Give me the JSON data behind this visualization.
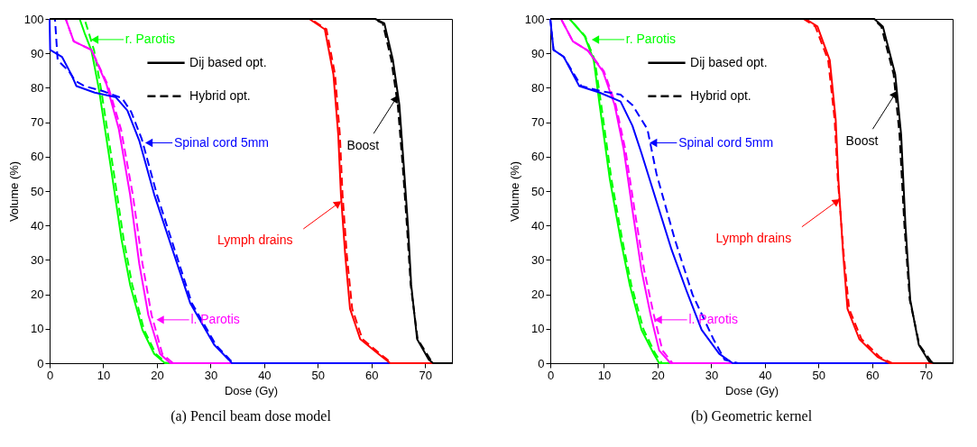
{
  "chart_data": [
    {
      "type": "line",
      "title": "(a)  Pencil beam dose model",
      "xlabel": "Dose (Gy)",
      "ylabel": "Volume (%)",
      "xlim": [
        0,
        75
      ],
      "ylim": [
        0,
        100
      ],
      "xticks": [
        0,
        10,
        20,
        30,
        40,
        50,
        60,
        70
      ],
      "yticks": [
        0,
        10,
        20,
        30,
        40,
        50,
        60,
        70,
        80,
        90,
        100
      ],
      "series": [
        {
          "color": "#00ff00",
          "line_style": "solid",
          "x": [
            0,
            5.6,
            6.5,
            7.8,
            9.2,
            11.5,
            13.4,
            15,
            17.3,
            19.5,
            21.5,
            75
          ],
          "values": [
            100,
            100,
            96,
            90.8,
            79.5,
            56,
            36,
            22.8,
            9.7,
            2.7,
            0,
            0
          ]
        },
        {
          "color": "#00ff00",
          "line_style": "dashed",
          "x": [
            0,
            6.5,
            7.3,
            8.3,
            9.6,
            11.9,
            13.8,
            15.4,
            17.6,
            19.8,
            21.8,
            75
          ],
          "values": [
            100,
            100,
            96,
            90.8,
            79.5,
            56,
            36,
            22.8,
            9.7,
            2.7,
            0,
            0
          ]
        },
        {
          "color": "#ff00ff",
          "line_style": "solid",
          "x": [
            0,
            3,
            4.5,
            7.8,
            10.6,
            12.9,
            15,
            16.7,
            18.4,
            20.6,
            22.5,
            75
          ],
          "values": [
            100,
            100,
            93.5,
            91,
            81,
            68,
            49,
            29,
            14,
            2.7,
            0,
            0
          ]
        },
        {
          "color": "#ff00ff",
          "line_style": "dashed",
          "x": [
            0,
            3,
            4.5,
            7.8,
            10.8,
            13.3,
            15.5,
            17.3,
            19,
            21,
            23,
            75
          ],
          "values": [
            100,
            100,
            93.5,
            91,
            81,
            68,
            49,
            29,
            14,
            2.7,
            0,
            0
          ]
        },
        {
          "color": "#0000ff",
          "line_style": "solid",
          "x": [
            0,
            0.1,
            2.3,
            4,
            5,
            8.4,
            12.3,
            14.5,
            16.7,
            19.5,
            22.9,
            26.2,
            30.7,
            33.4,
            34,
            75
          ],
          "values": [
            100,
            91,
            89,
            84,
            80.5,
            78.6,
            77.3,
            73.4,
            64.7,
            49,
            33,
            17.5,
            5.3,
            1,
            0,
            0
          ]
        },
        {
          "color": "#0000ff",
          "line_style": "dashed",
          "x": [
            0,
            1,
            1.5,
            3.5,
            4.8,
            6.5,
            10,
            13.5,
            15.2,
            17.2,
            20,
            23.3,
            26.5,
            31,
            33.6,
            34.3,
            75
          ],
          "values": [
            100,
            100,
            88,
            85,
            82,
            80.5,
            79,
            77,
            73,
            65,
            49,
            33,
            17.5,
            5.3,
            1,
            0,
            0
          ]
        },
        {
          "color": "#ff0000",
          "line_style": "solid",
          "x": [
            0,
            48.4,
            51.3,
            52.9,
            53.8,
            54.3,
            55.1,
            56,
            57.9,
            61.3,
            63.5,
            75
          ],
          "values": [
            100,
            100,
            97,
            83.9,
            66.4,
            49,
            31.5,
            15.8,
            7,
            2.7,
            0,
            0
          ]
        },
        {
          "color": "#ff0000",
          "line_style": "dashed",
          "x": [
            0,
            48.6,
            51.6,
            53.2,
            54.1,
            54.6,
            55.4,
            56.4,
            58.3,
            61.6,
            63.8,
            75
          ],
          "values": [
            100,
            100,
            97,
            83.9,
            66.4,
            49,
            31.5,
            15.8,
            7,
            2.7,
            0,
            0
          ]
        },
        {
          "color": "#000000",
          "line_style": "solid",
          "x": [
            0,
            60.7,
            62.4,
            64,
            65.2,
            66,
            66.8,
            67.4,
            68.5,
            70.7,
            71.5,
            75
          ],
          "values": [
            100,
            100,
            98.7,
            88,
            75,
            57.7,
            40,
            22.8,
            7,
            1,
            0,
            0
          ]
        },
        {
          "color": "#000000",
          "line_style": "dashed",
          "x": [
            0,
            60.4,
            62.1,
            63.7,
            64.9,
            65.8,
            66.6,
            67.3,
            68.6,
            71,
            71.8,
            75
          ],
          "values": [
            100,
            100,
            98.7,
            88,
            75,
            57.7,
            40,
            22.8,
            7,
            1,
            0,
            0
          ]
        }
      ],
      "annotations": [
        {
          "text": "r. Parotis",
          "x": 7.8,
          "y": 94
        },
        {
          "text": "Spinal cord 5mm",
          "x": 17.9,
          "y": 64
        },
        {
          "text": "l. Parotis",
          "x": 20,
          "y": 12.6
        },
        {
          "text": "Lymph drains",
          "x": 54.3,
          "y": 47
        },
        {
          "text": "Boost",
          "x": 64.9,
          "y": 77.7
        },
        "Dij based opt.",
        "Hybrid opt."
      ]
    },
    {
      "type": "line",
      "title": "(b)  Geometric kernel",
      "xlabel": "Dose (Gy)",
      "ylabel": "Volume (%)",
      "xlim": [
        0,
        75
      ],
      "ylim": [
        0,
        100
      ],
      "xticks": [
        0,
        10,
        20,
        30,
        40,
        50,
        60,
        70
      ],
      "yticks": [
        0,
        10,
        20,
        30,
        40,
        50,
        60,
        70,
        80,
        90,
        100
      ],
      "series": [
        {
          "color": "#00ff00",
          "line_style": "solid",
          "x": [
            0,
            3.6,
            6.4,
            8.1,
            9.2,
            11.1,
            13.1,
            14.8,
            17,
            19.3,
            20.3,
            75
          ],
          "values": [
            100,
            100,
            95,
            88,
            75,
            53.4,
            36,
            22.8,
            9.7,
            2.7,
            0,
            0
          ]
        },
        {
          "color": "#00ff00",
          "line_style": "dashed",
          "x": [
            0,
            3.6,
            6.5,
            8.3,
            9.5,
            11.4,
            13.4,
            15.1,
            17.4,
            19.6,
            20.8,
            75
          ],
          "values": [
            100,
            100,
            95,
            88,
            75,
            53.4,
            36,
            22.8,
            9.7,
            2.7,
            0,
            0
          ]
        },
        {
          "color": "#ff00ff",
          "line_style": "solid",
          "x": [
            0,
            2,
            4.2,
            7,
            9.8,
            12,
            13.7,
            15.3,
            17,
            18.7,
            20.3,
            22.4,
            75
          ],
          "values": [
            100,
            100,
            93.5,
            90.8,
            84.8,
            75,
            62,
            44.6,
            27,
            14,
            3.7,
            0,
            0
          ]
        },
        {
          "color": "#ff00ff",
          "line_style": "dashed",
          "x": [
            0,
            2,
            4.2,
            7,
            10,
            12.2,
            14,
            15.7,
            17.5,
            19.3,
            20.9,
            22.8,
            75
          ],
          "values": [
            100,
            100,
            93.5,
            90.8,
            84.8,
            75,
            62,
            44.6,
            27,
            14,
            3.7,
            0,
            0
          ]
        },
        {
          "color": "#0000ff",
          "line_style": "solid",
          "x": [
            0,
            0.6,
            2.5,
            4.2,
            5.4,
            9.2,
            13.1,
            15.3,
            17,
            19.8,
            22.6,
            25.4,
            28.2,
            31.5,
            34,
            75
          ],
          "values": [
            100,
            91,
            89,
            84,
            80.5,
            78.6,
            76,
            69,
            61,
            47,
            33,
            21,
            9.7,
            2.7,
            0,
            0
          ]
        },
        {
          "color": "#0000ff",
          "line_style": "dashed",
          "x": [
            0,
            0.6,
            2.5,
            4.4,
            5.8,
            9.5,
            13.1,
            15.3,
            18.1,
            19.8,
            23.2,
            26.5,
            30.4,
            32.5,
            35,
            75
          ],
          "values": [
            100,
            91,
            89,
            84,
            80.5,
            79,
            78,
            75,
            68,
            55,
            36,
            20,
            7,
            1,
            0,
            0
          ]
        },
        {
          "color": "#ff0000",
          "line_style": "solid",
          "x": [
            0,
            47.6,
            49.8,
            52.1,
            53.2,
            53.7,
            54.6,
            55.4,
            57.6,
            61,
            63.3,
            75
          ],
          "values": [
            100,
            100,
            97.8,
            88,
            70.8,
            53.3,
            31.5,
            15.8,
            7,
            1.8,
            0,
            0
          ]
        },
        {
          "color": "#ff0000",
          "line_style": "dashed",
          "x": [
            0,
            47.2,
            49.4,
            51.8,
            53,
            53.6,
            54.7,
            55.7,
            58,
            61.4,
            63.7,
            75
          ],
          "values": [
            100,
            100,
            97.8,
            88,
            70.8,
            53.3,
            31.5,
            15.8,
            7,
            1.8,
            0,
            0
          ]
        },
        {
          "color": "#000000",
          "line_style": "solid",
          "x": [
            0,
            60.4,
            62,
            64.3,
            65.4,
            66.2,
            67.1,
            68.7,
            70.6,
            71.5,
            75
          ],
          "values": [
            100,
            100,
            97.8,
            83.9,
            66.4,
            40.2,
            18.4,
            5.3,
            0.5,
            0,
            0
          ]
        },
        {
          "color": "#000000",
          "line_style": "dashed",
          "x": [
            0,
            60.2,
            61.7,
            64,
            65.1,
            66,
            67,
            68.8,
            71,
            72,
            75
          ],
          "values": [
            100,
            100,
            97.8,
            83.9,
            66.4,
            40.2,
            18.4,
            5.3,
            0.5,
            0,
            0
          ]
        }
      ],
      "annotations": [
        {
          "text": "r. Parotis",
          "x": 7.8,
          "y": 94
        },
        {
          "text": "Spinal cord 5mm",
          "x": 18.6,
          "y": 64
        },
        {
          "text": "l. Parotis",
          "x": 19.5,
          "y": 12.6
        },
        {
          "text": "Lymph drains",
          "x": 53.9,
          "y": 47.6
        },
        {
          "text": "Boost",
          "x": 64.6,
          "y": 79
        },
        "Dij based opt.",
        "Hybrid opt."
      ]
    }
  ]
}
